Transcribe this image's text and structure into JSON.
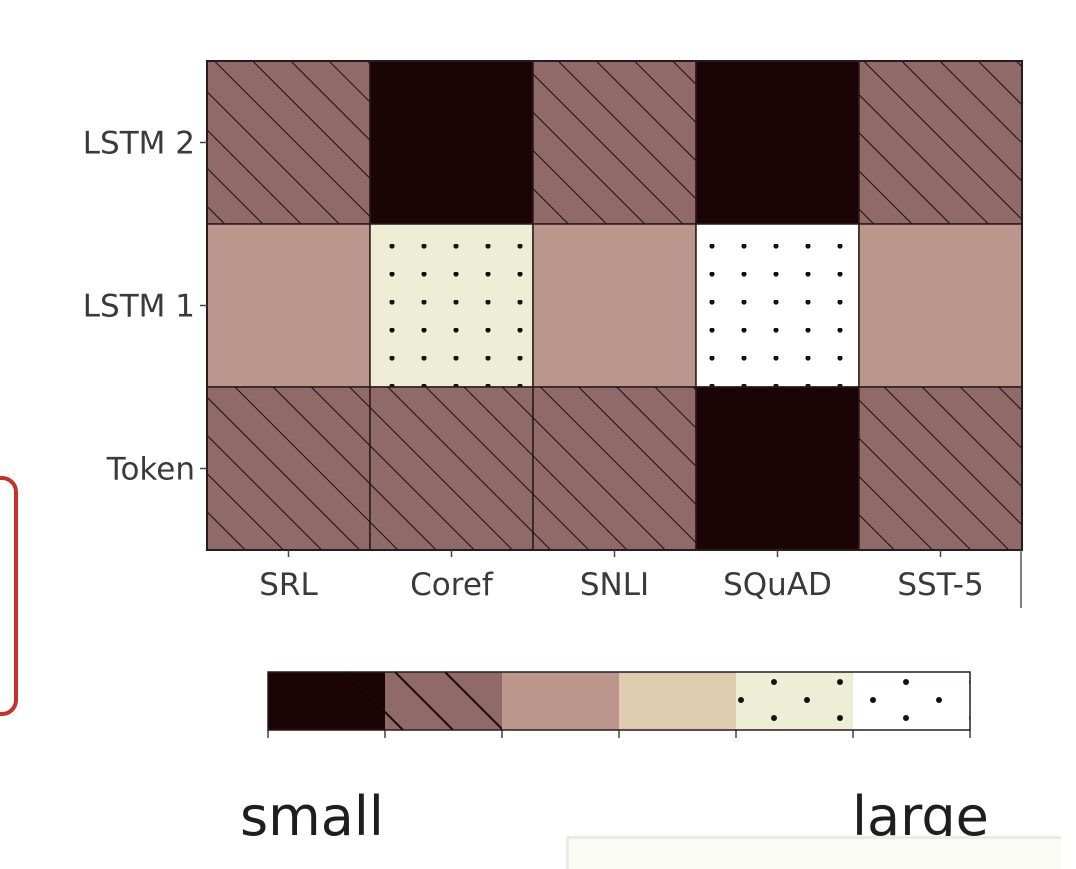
{
  "chart_data": {
    "type": "heatmap",
    "rows": [
      "LSTM 2",
      "LSTM 1",
      "Token"
    ],
    "columns": [
      "SRL",
      "Coref",
      "SNLI",
      "SQuAD",
      "SST-5"
    ],
    "values": [
      [
        1,
        0,
        1,
        0,
        1
      ],
      [
        2,
        4,
        2,
        5,
        2
      ],
      [
        1,
        1,
        1,
        0,
        1
      ]
    ],
    "levels": [
      {
        "level": 0,
        "color": "#1b0406",
        "pattern": "none"
      },
      {
        "level": 1,
        "color": "#906a68",
        "pattern": "hatch"
      },
      {
        "level": 2,
        "color": "#bb968c",
        "pattern": "none"
      },
      {
        "level": 3,
        "color": "#dfcbb0",
        "pattern": "none"
      },
      {
        "level": 4,
        "color": "#eeeed6",
        "pattern": "dots"
      },
      {
        "level": 5,
        "color": "#ffffff",
        "pattern": "dots"
      }
    ],
    "colorbar": {
      "left_label": "small",
      "right_label": "large"
    }
  }
}
